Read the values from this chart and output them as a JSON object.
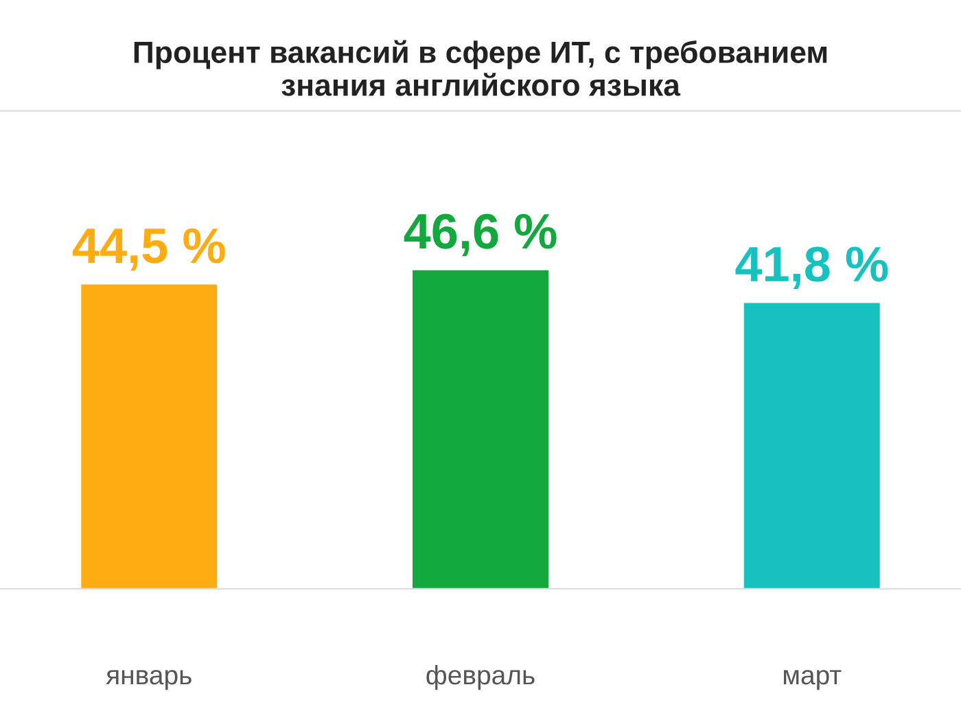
{
  "chart_data": {
    "type": "bar",
    "title": "Процент вакансий в сфере ИТ, с требованием\nзнания английского языка",
    "categories": [
      "январь",
      "февраль",
      "март"
    ],
    "values": [
      44.5,
      46.6,
      41.8
    ],
    "value_labels": [
      "44,5 %",
      "46,6 %",
      "41,8 %"
    ],
    "colors": [
      "#ffab12",
      "#12a83e",
      "#16c2c0"
    ]
  }
}
